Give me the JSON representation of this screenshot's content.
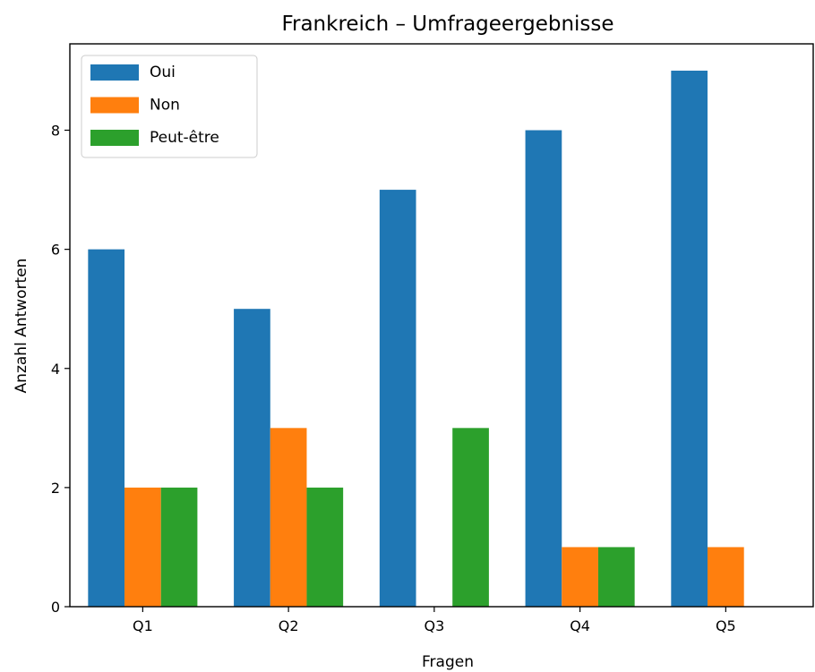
{
  "chart_data": {
    "type": "bar",
    "title": "Frankreich – Umfrageergebnisse",
    "xlabel": "Fragen",
    "ylabel": "Anzahl Antworten",
    "categories": [
      "Q1",
      "Q2",
      "Q3",
      "Q4",
      "Q5"
    ],
    "series": [
      {
        "name": "Oui",
        "color": "#1f77b4",
        "values": [
          6,
          5,
          7,
          8,
          9
        ]
      },
      {
        "name": "Non",
        "color": "#ff7f0e",
        "values": [
          2,
          3,
          0,
          1,
          1
        ]
      },
      {
        "name": "Peut-être",
        "color": "#2ca02c",
        "values": [
          2,
          2,
          3,
          1,
          0
        ]
      }
    ],
    "ylim": [
      0,
      9.45
    ],
    "yticks": [
      "0",
      "2",
      "4",
      "6",
      "8"
    ],
    "grid": false,
    "legend_position": "top-left"
  }
}
